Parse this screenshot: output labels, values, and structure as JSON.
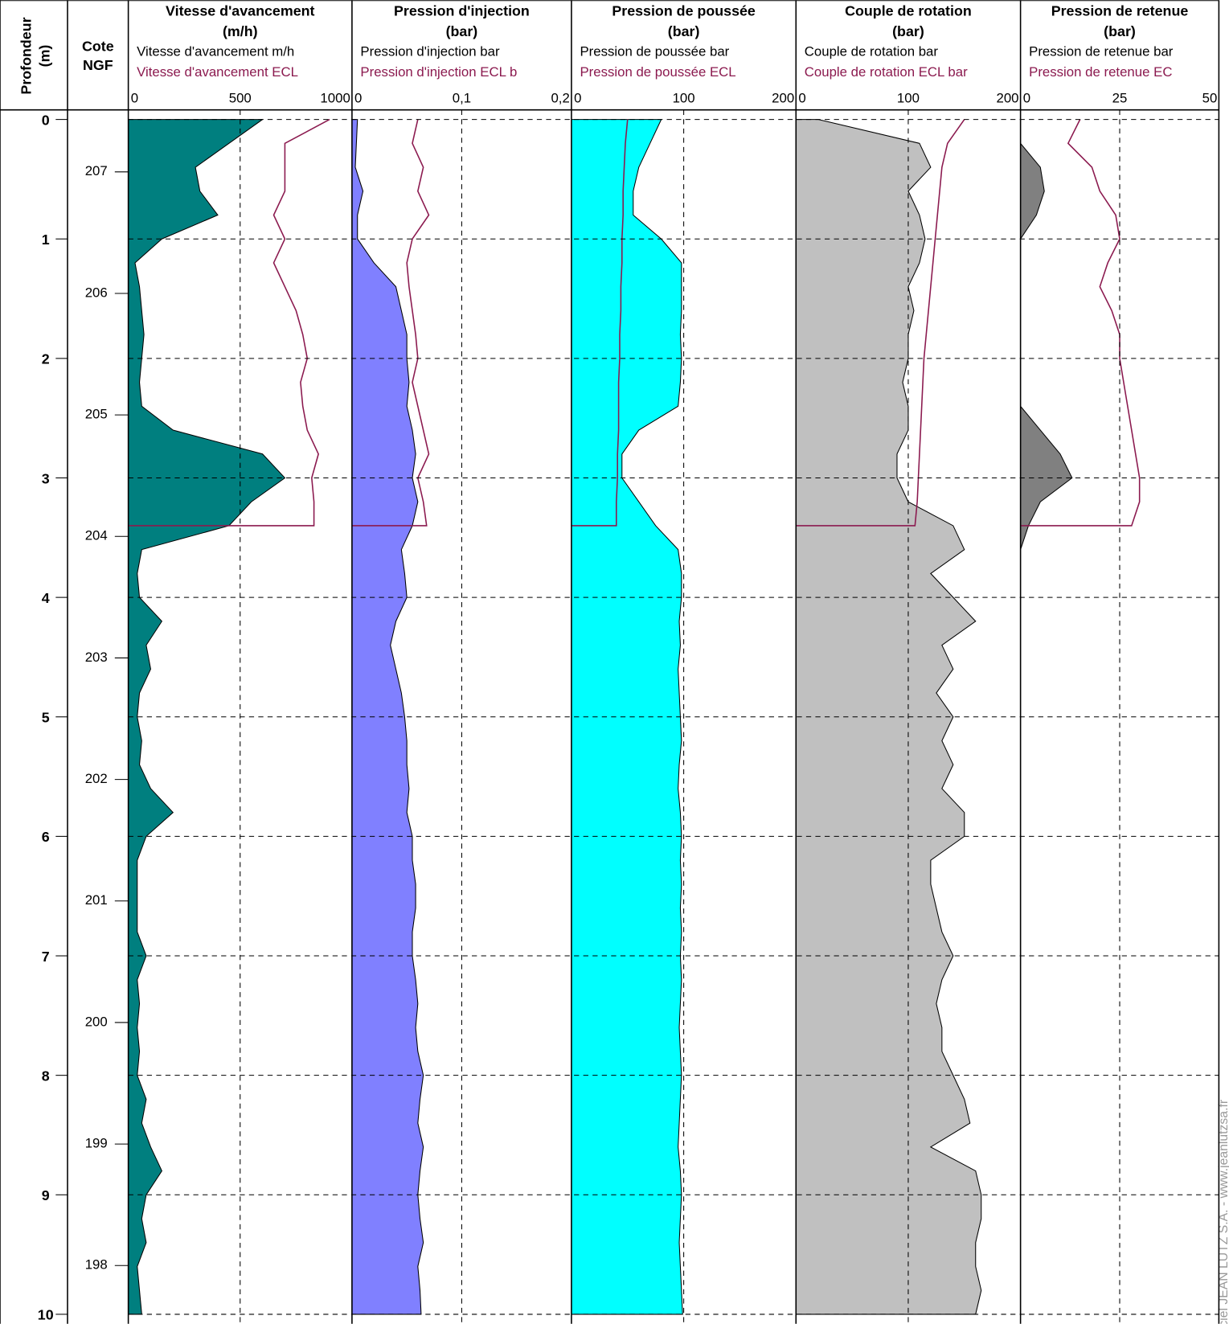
{
  "chart_data": {
    "type": "well-log",
    "ylabel": "Profondeur",
    "yunit": "(m)",
    "y2label": [
      "Cote",
      "NGF"
    ],
    "ylim": [
      -0.08,
      10.08
    ],
    "yticks": [
      0,
      1,
      2,
      3,
      4,
      5,
      6,
      7,
      8,
      9,
      10
    ],
    "y2lim": [
      207.51,
      197.52
    ],
    "y2ticks": [
      207,
      206,
      205,
      204,
      203,
      202,
      201,
      200,
      199,
      198
    ],
    "grid": true,
    "credit": "Logiciel JEAN LUTZ S.A. - www.jeanlutzsa.fr",
    "depth": [
      0,
      0.2,
      0.4,
      0.6,
      0.8,
      1,
      1.2,
      1.4,
      1.6,
      1.8,
      2,
      2.2,
      2.4,
      2.6,
      2.8,
      3,
      3.2,
      3.4,
      3.6,
      3.8,
      4,
      4.2,
      4.4,
      4.6,
      4.8,
      5,
      5.2,
      5.4,
      5.6,
      5.8,
      6,
      6.2,
      6.4,
      6.6,
      6.8,
      7,
      7.2,
      7.4,
      7.6,
      7.8,
      8,
      8.2,
      8.4,
      8.6,
      8.8,
      9,
      9.2,
      9.4,
      9.6,
      9.8,
      10
    ],
    "ecl_depth": [
      0,
      0.2,
      0.4,
      0.6,
      0.8,
      1,
      1.2,
      1.4,
      1.6,
      1.8,
      2,
      2.2,
      2.4,
      2.6,
      2.8,
      3,
      3.2,
      3.4
    ],
    "tracks": [
      {
        "title": "Vitesse d'avancement",
        "unit": "(m/h)",
        "xlim": [
          0,
          1000
        ],
        "xticks": [
          0,
          500,
          1000
        ],
        "series": [
          {
            "name": "Vitesse d'avancement m/h",
            "color": "#007f7f",
            "values": [
              600,
              450,
              300,
              320,
              400,
              150,
              30,
              50,
              60,
              70,
              60,
              50,
              60,
              200,
              600,
              700,
              550,
              450,
              60,
              40,
              50,
              150,
              80,
              100,
              50,
              40,
              60,
              50,
              100,
              200,
              80,
              40,
              40,
              40,
              40,
              80,
              40,
              50,
              40,
              50,
              40,
              80,
              60,
              100,
              150,
              80,
              60,
              80,
              40,
              50,
              60
            ]
          },
          {
            "name": "Vitesse d'avancement ECL",
            "color": "#8b1a4f",
            "values": [
              900,
              700,
              700,
              700,
              650,
              700,
              650,
              700,
              750,
              780,
              800,
              770,
              780,
              800,
              850,
              820,
              830,
              830
            ]
          }
        ]
      },
      {
        "title": "Pression d'injection",
        "unit": "(bar)",
        "xlim": [
          0,
          0.2
        ],
        "xticks": [
          0,
          {
            "value": 0.1,
            "label": "0,1"
          },
          {
            "value": 0.2,
            "label": "0,2"
          }
        ],
        "series": [
          {
            "name": "Pression d'injection bar",
            "color": "#8080ff",
            "values": [
              0.005,
              0.004,
              0.003,
              0.01,
              0.005,
              0.005,
              0.02,
              0.04,
              0.045,
              0.05,
              0.05,
              0.052,
              0.05,
              0.055,
              0.058,
              0.055,
              0.06,
              0.055,
              0.045,
              0.048,
              0.05,
              0.04,
              0.035,
              0.04,
              0.045,
              0.048,
              0.05,
              0.05,
              0.052,
              0.05,
              0.055,
              0.055,
              0.058,
              0.058,
              0.055,
              0.055,
              0.058,
              0.06,
              0.058,
              0.06,
              0.065,
              0.062,
              0.06,
              0.065,
              0.062,
              0.06,
              0.062,
              0.065,
              0.06,
              0.062,
              0.063
            ]
          },
          {
            "name": "Pression d'injection  ECL b",
            "color": "#8b1a4f",
            "values": [
              0.06,
              0.055,
              0.065,
              0.06,
              0.07,
              0.055,
              0.05,
              0.052,
              0.055,
              0.058,
              0.06,
              0.055,
              0.06,
              0.065,
              0.07,
              0.06,
              0.065,
              0.068
            ]
          }
        ]
      },
      {
        "title": "Pression de poussée",
        "unit": "(bar)",
        "xlim": [
          0,
          200
        ],
        "xticks": [
          0,
          100,
          200
        ],
        "series": [
          {
            "name": "Pression de poussée bar",
            "color": "#00ffff",
            "values": [
              80,
              70,
              60,
              55,
              55,
              80,
              98,
              98,
              98,
              97,
              98,
              97,
              95,
              60,
              45,
              45,
              60,
              75,
              95,
              98,
              98,
              96,
              97,
              95,
              96,
              97,
              98,
              96,
              95,
              97,
              98,
              97,
              98,
              97,
              98,
              97,
              98,
              97,
              96,
              97,
              98,
              97,
              96,
              95,
              97,
              98,
              97,
              96,
              97,
              98,
              99
            ]
          },
          {
            "name": "Pression de poussée ECL",
            "color": "#8b1a4f",
            "values": [
              50,
              48,
              47,
              46,
              46,
              45,
              45,
              44,
              44,
              43,
              43,
              42,
              42,
              42,
              41,
              41,
              40,
              40
            ]
          }
        ]
      },
      {
        "title": "Couple de rotation",
        "unit": "(bar)",
        "xlim": [
          0,
          200
        ],
        "xticks": [
          0,
          100,
          200
        ],
        "series": [
          {
            "name": "Couple de rotation bar",
            "color": "#c0c0c0",
            "values": [
              20,
              110,
              120,
              100,
              110,
              115,
              110,
              100,
              105,
              100,
              100,
              95,
              100,
              100,
              90,
              90,
              100,
              140,
              150,
              120,
              140,
              160,
              130,
              140,
              125,
              140,
              130,
              140,
              130,
              150,
              150,
              120,
              120,
              125,
              130,
              140,
              130,
              125,
              130,
              130,
              140,
              150,
              155,
              120,
              160,
              165,
              165,
              160,
              160,
              165,
              160
            ]
          },
          {
            "name": "Couple de rotation ECL bar",
            "color": "#8b1a4f",
            "values": [
              150,
              135,
              130,
              128,
              126,
              124,
              122,
              120,
              118,
              116,
              114,
              113,
              112,
              111,
              110,
              109,
              108,
              106
            ]
          }
        ]
      },
      {
        "title": "Pression de retenue",
        "unit": "(bar)",
        "xlim": [
          0,
          50
        ],
        "xticks": [
          0,
          25,
          50
        ],
        "series": [
          {
            "name": "Pression de retenue bar",
            "color": "#808080",
            "values": [
              0,
              0,
              5,
              6,
              4,
              0,
              0,
              0,
              0,
              0,
              0,
              0,
              0,
              5,
              10,
              13,
              5,
              2,
              0,
              0,
              0,
              0,
              0,
              0,
              0,
              0,
              0,
              0,
              0,
              0,
              0,
              0,
              0,
              0,
              0,
              0,
              0,
              0,
              0,
              0,
              0,
              0,
              0,
              0,
              0,
              0,
              0,
              0,
              0,
              0,
              0
            ]
          },
          {
            "name": "Pression de retenue EC",
            "color": "#8b1a4f",
            "values": [
              15,
              12,
              18,
              20,
              24,
              25,
              22,
              20,
              23,
              25,
              25,
              26,
              27,
              28,
              29,
              30,
              30,
              28
            ]
          }
        ]
      }
    ]
  }
}
